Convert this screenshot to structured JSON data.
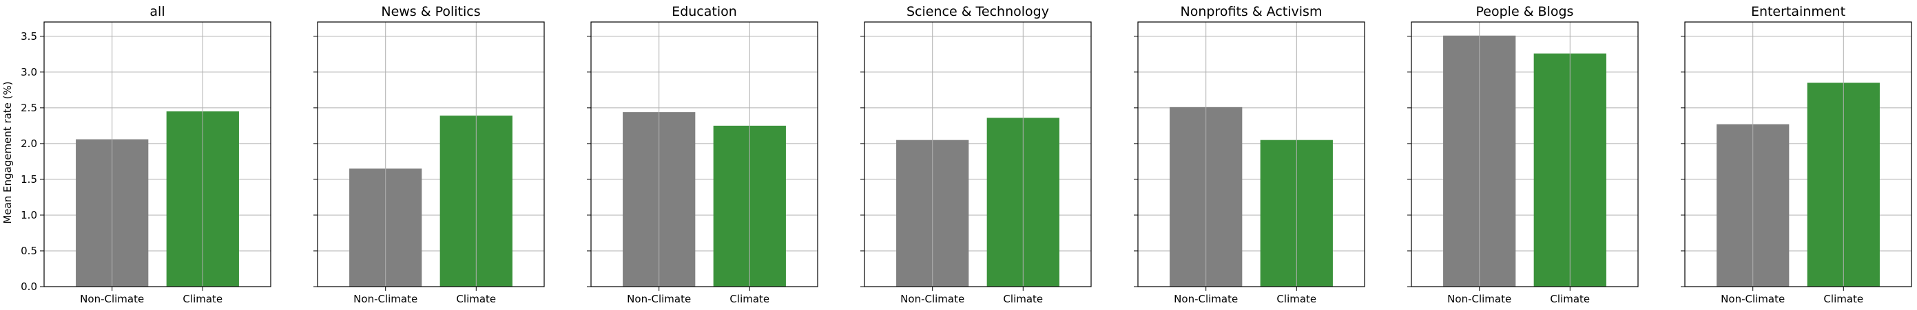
{
  "chart_data": {
    "type": "bar",
    "ylabel": "Mean Engagement rate (%)",
    "ylim": [
      0,
      3.7
    ],
    "yticks": [
      0.0,
      0.5,
      1.0,
      1.5,
      2.0,
      2.5,
      3.0,
      3.5
    ],
    "ytick_labels": [
      "0.0",
      "0.5",
      "1.0",
      "1.5",
      "2.0",
      "2.5",
      "3.0",
      "3.5"
    ],
    "grid": true,
    "shared_y": true,
    "categories": [
      "Non-Climate",
      "Climate"
    ],
    "colors": {
      "Non-Climate": "#808080",
      "Climate": "#3a923a"
    },
    "panels": [
      {
        "title": "all",
        "values": [
          2.06,
          2.45
        ]
      },
      {
        "title": "News & Politics",
        "values": [
          1.65,
          2.39
        ]
      },
      {
        "title": "Education",
        "values": [
          2.44,
          2.25
        ]
      },
      {
        "title": "Science & Technology",
        "values": [
          2.05,
          2.36
        ]
      },
      {
        "title": "Nonprofits & Activism",
        "values": [
          2.51,
          2.05
        ]
      },
      {
        "title": "People & Blogs",
        "values": [
          3.51,
          3.26
        ]
      },
      {
        "title": "Entertainment",
        "values": [
          2.27,
          2.85
        ]
      }
    ]
  }
}
